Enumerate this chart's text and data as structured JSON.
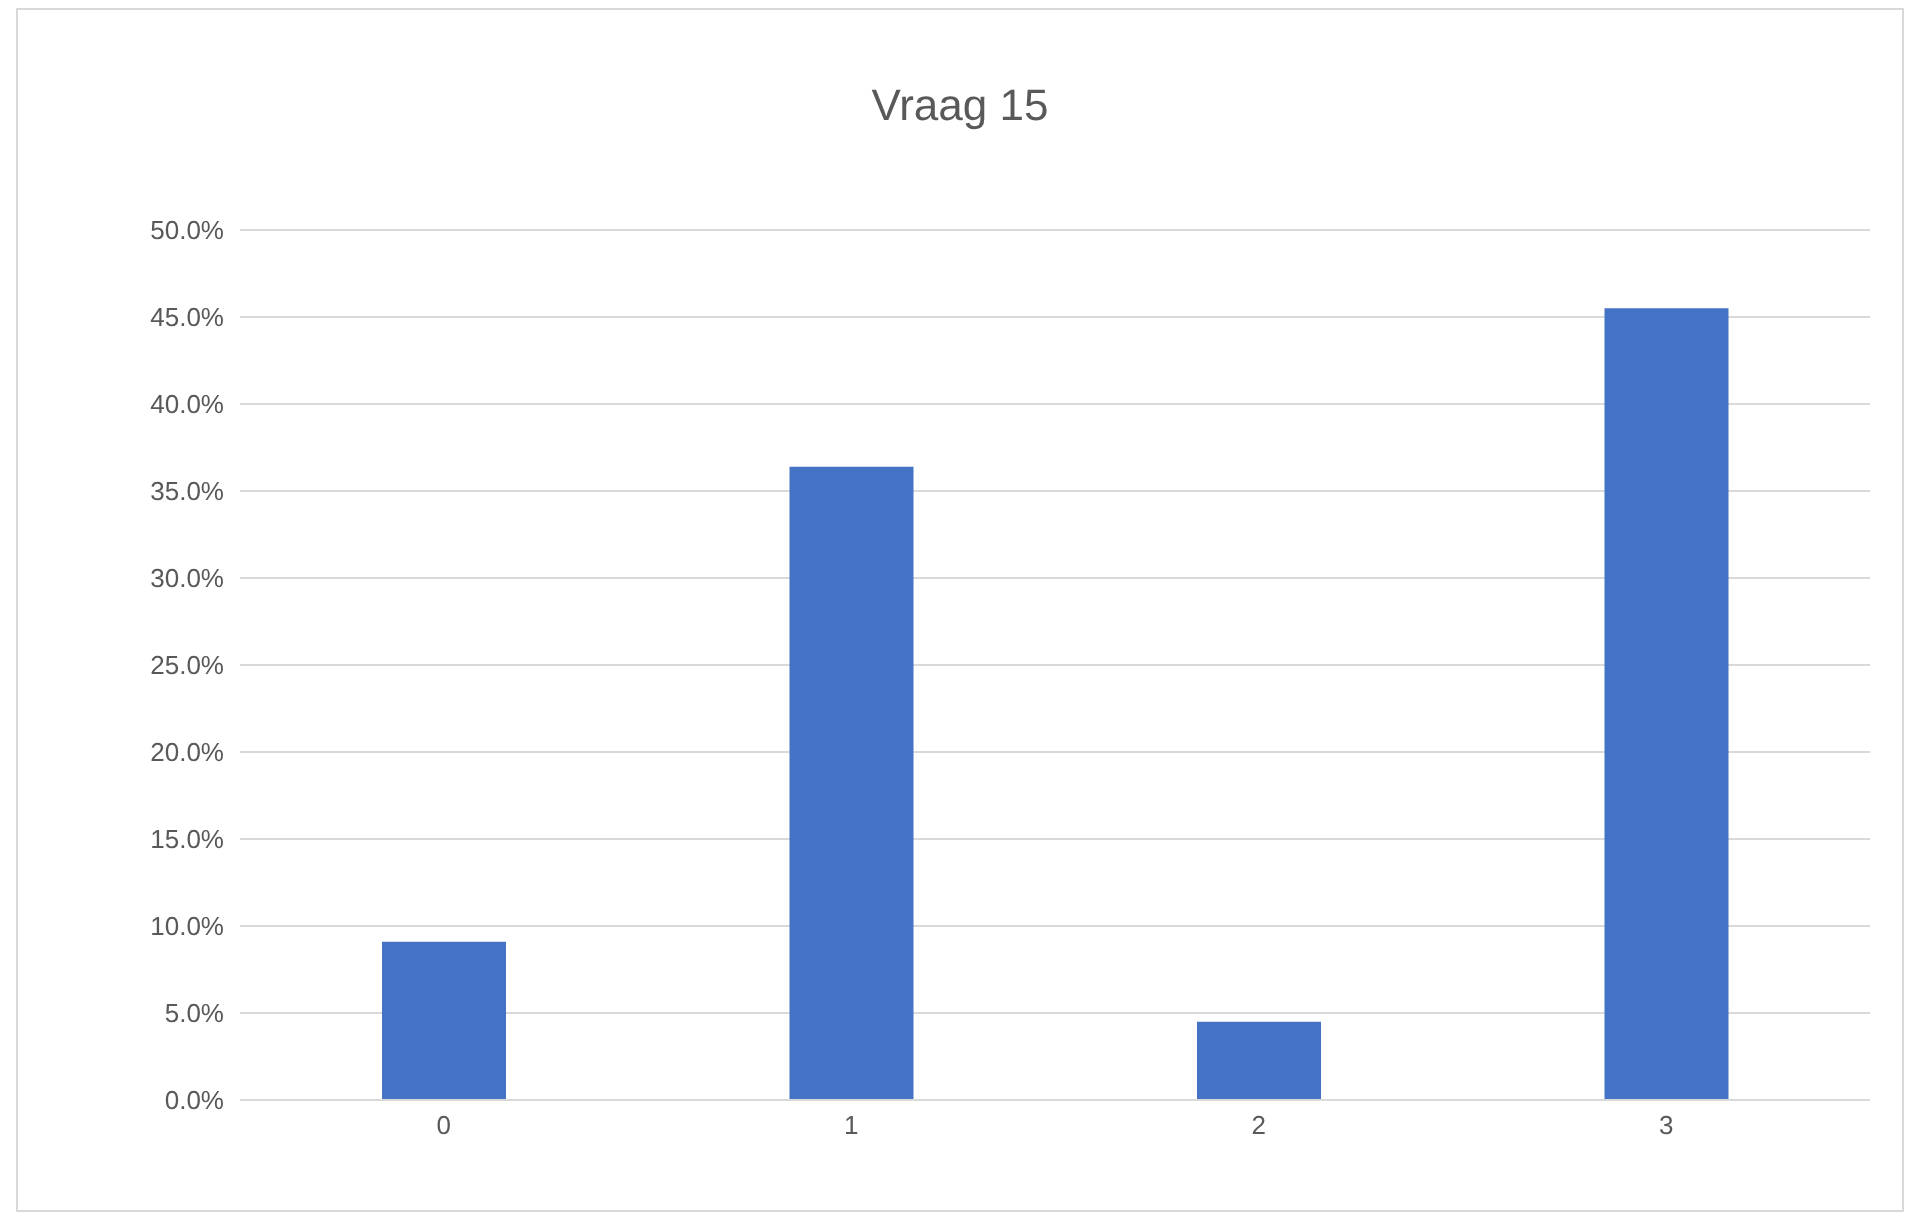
{
  "chart_data": {
    "type": "bar",
    "title": "Vraag 15",
    "categories": [
      "0",
      "1",
      "2",
      "3"
    ],
    "values": [
      9.1,
      36.4,
      4.5,
      45.5
    ],
    "color": "#4472c4",
    "ylim": [
      0,
      50
    ],
    "yticks": [
      {
        "value": 0,
        "label": "0.0%"
      },
      {
        "value": 5,
        "label": "5.0%"
      },
      {
        "value": 10,
        "label": "10.0%"
      },
      {
        "value": 15,
        "label": "15.0%"
      },
      {
        "value": 20,
        "label": "20.0%"
      },
      {
        "value": 25,
        "label": "25.0%"
      },
      {
        "value": 30,
        "label": "30.0%"
      },
      {
        "value": 35,
        "label": "35.0%"
      },
      {
        "value": 40,
        "label": "40.0%"
      },
      {
        "value": 45,
        "label": "45.0%"
      },
      {
        "value": 50,
        "label": "50.0%"
      }
    ],
    "grid": "y"
  }
}
